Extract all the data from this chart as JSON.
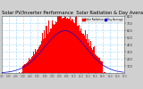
{
  "title": "Solar PV/Inverter Performance  Solar Radiation & Day Average per Minute",
  "title_fontsize": 3.8,
  "bg_color": "#d0d0d0",
  "plot_bg_color": "#ffffff",
  "bar_color": "#ff0000",
  "avg_line_color": "#0000cc",
  "grid_color": "#aaddff",
  "ylim": [
    0,
    800
  ],
  "yticks": [
    100,
    200,
    300,
    400,
    500,
    600,
    700,
    800
  ],
  "num_bars": 144,
  "legend_labels": [
    "Solar Radiation",
    "Day Average"
  ],
  "legend_colors": [
    "#ff0000",
    "#0000cc"
  ],
  "x_label_color": "#444444",
  "border_color": "#888888",
  "figsize": [
    1.6,
    1.0
  ],
  "dpi": 100
}
